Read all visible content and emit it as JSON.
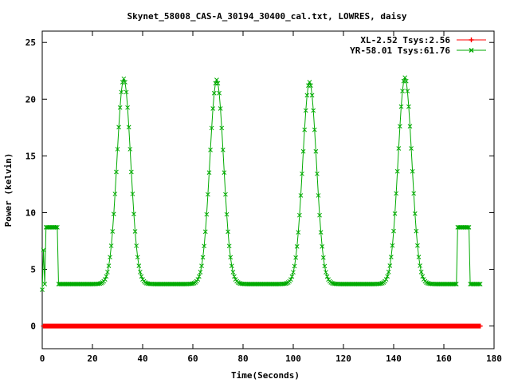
{
  "chart_data": {
    "type": "line",
    "title": "Skynet_58008_CAS-A_30194_30400_cal.txt, LOWRES, daisy",
    "xlabel": "Time(Seconds)",
    "ylabel": "Power (kelvin)",
    "xlim": [
      0,
      180
    ],
    "ylim": [
      -2,
      26
    ],
    "xticks": [
      0,
      20,
      40,
      60,
      80,
      100,
      120,
      140,
      160,
      180
    ],
    "yticks": [
      0,
      5,
      10,
      15,
      20,
      25
    ],
    "grid": false,
    "legend_position": "top-right",
    "series": [
      {
        "name": "XL-2.52 Tsys:2.56",
        "color": "#ff0000",
        "marker": "plus",
        "x_start": 0.5,
        "x_end": 174.5,
        "x_step": 0.4,
        "y": 0
      },
      {
        "name": "YR-58.01 Tsys:61.76",
        "color": "#00aa00",
        "marker": "x",
        "baseline": 3.7,
        "peaks": [
          {
            "x": 32.5,
            "y": 21.8
          },
          {
            "x": 69.5,
            "y": 21.7
          },
          {
            "x": 106.5,
            "y": 21.5
          },
          {
            "x": 144.5,
            "y": 21.9
          }
        ],
        "peak_half_width": 6,
        "elevated_segments": [
          {
            "x": [
              1.5,
              6
            ],
            "y": 8.7
          },
          {
            "x": [
              165.5,
              170
            ],
            "y": 8.7
          }
        ],
        "start_points": [
          [
            0,
            3.2
          ],
          [
            0.5,
            6.7
          ],
          [
            1.0,
            3.7
          ]
        ],
        "x_end": 174.5,
        "x_step": 0.5
      }
    ]
  }
}
